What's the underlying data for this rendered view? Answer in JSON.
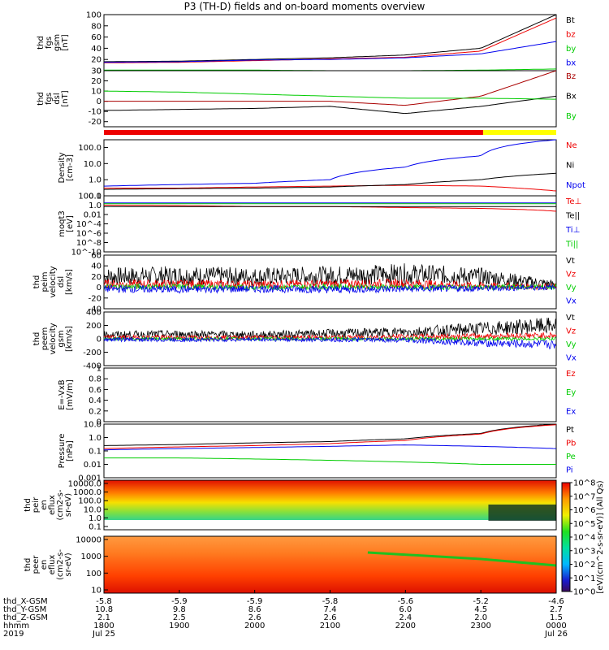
{
  "title": "P3 (TH-D) fields and on-board moments overview",
  "chart_data": {
    "type": "line",
    "x_hours": [
      18,
      19,
      20,
      21,
      22,
      23,
      24
    ],
    "panels": [
      {
        "id": "fgs-gsm",
        "ylabel": [
          "thd",
          "fgs",
          "gsm",
          "[nT]"
        ],
        "ylim": [
          0,
          100
        ],
        "ticks": [
          0,
          20,
          40,
          60,
          80,
          100
        ],
        "series": [
          {
            "name": "Bt",
            "color": "#000000",
            "values": [
              16,
              17,
              20,
              23,
              28,
              40,
              100
            ]
          },
          {
            "name": "bz",
            "color": "#ee0000",
            "values": [
              14,
              15,
              18,
              21,
              24,
              35,
              94
            ]
          },
          {
            "name": "by",
            "color": "#00cc00",
            "values": [
              1,
              1,
              1,
              0,
              0,
              1,
              3
            ]
          },
          {
            "name": "bx",
            "color": "#0000ee",
            "values": [
              15,
              16,
              19,
              20,
              23,
              30,
              52
            ]
          }
        ]
      },
      {
        "id": "fgs-dsl",
        "ylabel": [
          "thd",
          "fgs",
          "dsl",
          "[nT]"
        ],
        "ylim": [
          -25,
          30
        ],
        "ticks": [
          -20,
          -10,
          0,
          10,
          20,
          30
        ],
        "series": [
          {
            "name": "Bz",
            "color": "#aa0000",
            "values": [
              0,
              0,
              0,
              0,
              -4,
              5,
              30
            ]
          },
          {
            "name": "Bx",
            "color": "#000000",
            "values": [
              -9,
              -8,
              -7,
              -5,
              -12,
              -5,
              5
            ]
          },
          {
            "name": "By",
            "color": "#00cc00",
            "values": [
              10,
              9,
              7,
              5,
              3,
              3,
              2
            ]
          }
        ]
      },
      {
        "id": "density",
        "ylabel": [
          "Density",
          "[cm-3]"
        ],
        "ylim": [
          0.1,
          300
        ],
        "log": true,
        "ticks": [
          0.1,
          1.0,
          10.0,
          100.0
        ],
        "series": [
          {
            "name": "Ne",
            "color": "#ee0000",
            "values": [
              0.3,
              0.3,
              0.35,
              0.4,
              0.45,
              0.4,
              0.2
            ]
          },
          {
            "name": "Ni",
            "color": "#000000",
            "values": [
              0.25,
              0.28,
              0.3,
              0.35,
              0.5,
              1.0,
              2.5
            ]
          },
          {
            "name": "Npot",
            "color": "#0000ee",
            "values": [
              0.4,
              0.5,
              0.6,
              1.0,
              6,
              30,
              300
            ]
          }
        ]
      },
      {
        "id": "temperature",
        "ylabel": [
          "moqt3",
          "[eV]"
        ],
        "ylim": [
          1e-10,
          100
        ],
        "log": true,
        "ticks": [
          1e-10,
          1e-08,
          1e-06,
          0.0001,
          0.01,
          1,
          100
        ],
        "series": [
          {
            "name": "Te⊥",
            "color": "#ee0000",
            "values": [
              1,
              0.8,
              0.5,
              0.5,
              0.3,
              0.2,
              0.05
            ]
          },
          {
            "name": "Te||",
            "color": "#000000",
            "values": [
              0.5,
              0.5,
              0.5,
              0.5,
              0.5,
              0.5,
              0.5
            ]
          },
          {
            "name": "Ti⊥",
            "color": "#0000ee",
            "values": [
              3,
              3,
              3,
              3,
              3,
              3,
              3
            ]
          },
          {
            "name": "Ti||",
            "color": "#00cc00",
            "values": [
              2,
              2,
              2,
              2,
              2,
              2,
              2
            ]
          }
        ]
      },
      {
        "id": "peim-velocity",
        "ylabel": [
          "thd",
          "peim",
          "velocity",
          "dsl",
          "[km/s]"
        ],
        "ylim": [
          -40,
          60
        ],
        "ticks": [
          -40,
          -20,
          0,
          20,
          40,
          60
        ],
        "series": [
          {
            "name": "Vt",
            "color": "#000000",
            "values": [
              20,
              22,
              20,
              22,
              25,
              20,
              5
            ]
          },
          {
            "name": "Vz",
            "color": "#ee0000",
            "values": [
              6,
              6,
              5,
              6,
              7,
              3,
              1
            ]
          },
          {
            "name": "Vy",
            "color": "#00cc00",
            "values": [
              1,
              1,
              0,
              1,
              0,
              0,
              1
            ]
          },
          {
            "name": "Vx",
            "color": "#0000ee",
            "values": [
              -3,
              -4,
              -3,
              -4,
              -3,
              -2,
              0
            ]
          }
        ]
      },
      {
        "id": "peem-velocity",
        "ylabel": [
          "thd",
          "peem",
          "velocity",
          "gsm",
          "[km/s]"
        ],
        "ylim": [
          -400,
          400
        ],
        "ticks": [
          -400,
          -200,
          0,
          200,
          400
        ],
        "series": [
          {
            "name": "Vt",
            "color": "#000000",
            "values": [
              60,
              70,
              60,
              80,
              100,
              150,
              200
            ]
          },
          {
            "name": "Vz",
            "color": "#ee0000",
            "values": [
              20,
              20,
              20,
              20,
              30,
              40,
              50
            ]
          },
          {
            "name": "Vy",
            "color": "#00cc00",
            "values": [
              0,
              0,
              0,
              0,
              0,
              0,
              0
            ]
          },
          {
            "name": "Vx",
            "color": "#0000ee",
            "values": [
              -10,
              -15,
              -10,
              -15,
              -20,
              -60,
              -90
            ]
          }
        ]
      },
      {
        "id": "efield",
        "ylabel": [
          "E=-VxB",
          "[mV/m]"
        ],
        "ylim": [
          0,
          1
        ],
        "ticks": [
          0.0,
          0.2,
          0.4,
          0.6,
          0.8,
          1.0
        ],
        "series": [
          {
            "name": "Ez",
            "color": "#ee0000",
            "values": []
          },
          {
            "name": "Ey",
            "color": "#00cc00",
            "values": []
          },
          {
            "name": "Ex",
            "color": "#0000ee",
            "values": []
          }
        ]
      },
      {
        "id": "pressure",
        "ylabel": [
          "Pressure",
          "[nPa]"
        ],
        "ylim": [
          0.001,
          10
        ],
        "log": true,
        "ticks": [
          0.001,
          0.01,
          0.1,
          1.0,
          10.0
        ],
        "series": [
          {
            "name": "Pt",
            "color": "#000000",
            "values": [
              0.25,
              0.3,
              0.4,
              0.5,
              0.8,
              2.0,
              10
            ]
          },
          {
            "name": "Pb",
            "color": "#ee0000",
            "values": [
              0.15,
              0.2,
              0.25,
              0.35,
              0.6,
              1.8,
              9
            ]
          },
          {
            "name": "Pe",
            "color": "#00cc00",
            "values": [
              0.03,
              0.03,
              0.025,
              0.02,
              0.015,
              0.01,
              0.01
            ]
          },
          {
            "name": "Pi",
            "color": "#0000ee",
            "values": [
              0.12,
              0.15,
              0.18,
              0.22,
              0.28,
              0.22,
              0.15
            ]
          }
        ]
      }
    ],
    "spectrograms": [
      {
        "id": "peir",
        "ylabel": [
          "thd",
          "peir",
          "en",
          "eflux",
          "(cm2-s-",
          "sr-eV)"
        ],
        "ticks": [
          "10000.0",
          "1000.0",
          "100.0",
          "10.0",
          "1.0",
          "0.1"
        ]
      },
      {
        "id": "peer",
        "ylabel": [
          "thd",
          "peer",
          "en",
          "eflux",
          "(cm2-s-",
          "sr-eV)"
        ],
        "ticks": [
          "10000",
          "1000",
          "100",
          "10"
        ]
      }
    ],
    "colorbar": {
      "label": "[eV/(cm^2-s-sr-eV)] (All Qs)",
      "ticks": [
        "10^0",
        "10^1",
        "10^2",
        "10^3",
        "10^4",
        "10^5",
        "10^6",
        "10^7",
        "10^8"
      ]
    },
    "orbit": {
      "labels": [
        "thd_X-GSM",
        "thd_Y-GSM",
        "thd_Z-GSM",
        "hhmm",
        "2019"
      ],
      "x_gsm": [
        "-5.8",
        "-5.9",
        "-5.9",
        "-5.8",
        "-5.6",
        "-5.2",
        "-4.6"
      ],
      "y_gsm": [
        "10.8",
        "9.8",
        "8.6",
        "7.4",
        "6.0",
        "4.5",
        "2.7"
      ],
      "z_gsm": [
        "2.1",
        "2.5",
        "2.6",
        "2.6",
        "2.4",
        "2.0",
        "1.5"
      ],
      "hhmm": [
        "1800",
        "1900",
        "2000",
        "2100",
        "2200",
        "2300",
        "0000"
      ],
      "dates": [
        "Jul 25",
        "",
        "",
        "",
        "",
        "",
        "Jul 26"
      ]
    }
  }
}
